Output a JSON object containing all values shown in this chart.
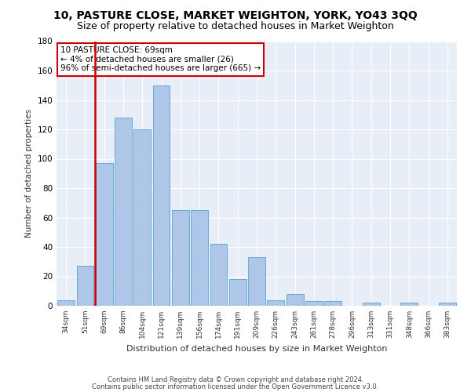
{
  "title1": "10, PASTURE CLOSE, MARKET WEIGHTON, YORK, YO43 3QQ",
  "title2": "Size of property relative to detached houses in Market Weighton",
  "xlabel": "Distribution of detached houses by size in Market Weighton",
  "ylabel": "Number of detached properties",
  "categories": [
    "34sqm",
    "51sqm",
    "69sqm",
    "86sqm",
    "104sqm",
    "121sqm",
    "139sqm",
    "156sqm",
    "174sqm",
    "191sqm",
    "209sqm",
    "226sqm",
    "243sqm",
    "261sqm",
    "278sqm",
    "296sqm",
    "313sqm",
    "331sqm",
    "348sqm",
    "366sqm",
    "383sqm"
  ],
  "values": [
    4,
    27,
    97,
    128,
    120,
    150,
    65,
    65,
    42,
    18,
    33,
    4,
    8,
    3,
    3,
    0,
    2,
    0,
    2,
    0,
    2
  ],
  "bar_color": "#aec6e8",
  "bar_edge_color": "#6aaad4",
  "highlight_index": 2,
  "highlight_color": "#cc0000",
  "ylim": [
    0,
    180
  ],
  "yticks": [
    0,
    20,
    40,
    60,
    80,
    100,
    120,
    140,
    160,
    180
  ],
  "annotation_title": "10 PASTURE CLOSE: 69sqm",
  "annotation_line1": "← 4% of detached houses are smaller (26)",
  "annotation_line2": "96% of semi-detached houses are larger (665) →",
  "annotation_box_color": "#cc0000",
  "footer1": "Contains HM Land Registry data © Crown copyright and database right 2024.",
  "footer2": "Contains public sector information licensed under the Open Government Licence v3.0.",
  "fig_background": "#ffffff",
  "plot_background": "#e8eef7",
  "grid_color": "#ffffff",
  "title1_fontsize": 10,
  "title2_fontsize": 9
}
